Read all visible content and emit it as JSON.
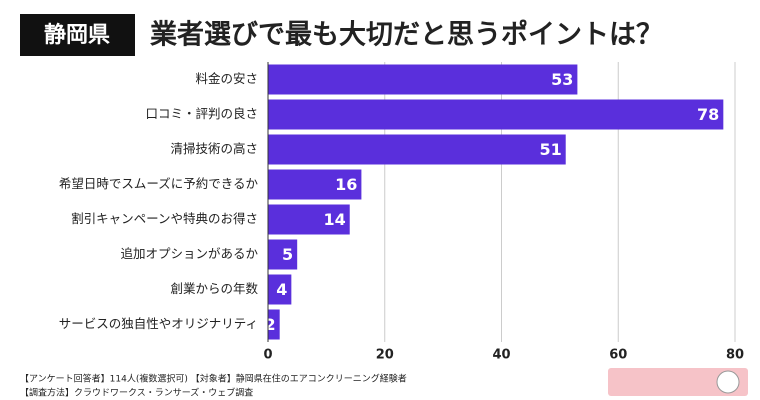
{
  "chart_data": {
    "type": "bar",
    "orientation": "horizontal",
    "badge": "静岡県",
    "title": "業者選びで最も大切だと思うポイントは？",
    "categories": [
      "料金の安さ",
      "口コミ・評判の良さ",
      "清掃技術の高さ",
      "希望日時でスムーズに予約できるか",
      "割引キャンペーンや特典のお得さ",
      "追加オプションがあるか",
      "創業からの年数",
      "サービスの独自性やオリジナリティ"
    ],
    "values": [
      53,
      78,
      51,
      16,
      14,
      5,
      4,
      2
    ],
    "color": "#5a2fdc",
    "xlim": [
      0,
      80
    ],
    "xticks": [
      0,
      20,
      40,
      60,
      80
    ],
    "grid": true,
    "notes": [
      "【アンケート回答者】114人(複数選択可) 【対象者】静岡県在住のエアコンクリーニング経験者",
      "【調査方法】クラウドワークス・ランサーズ・ウェブ調査"
    ]
  }
}
